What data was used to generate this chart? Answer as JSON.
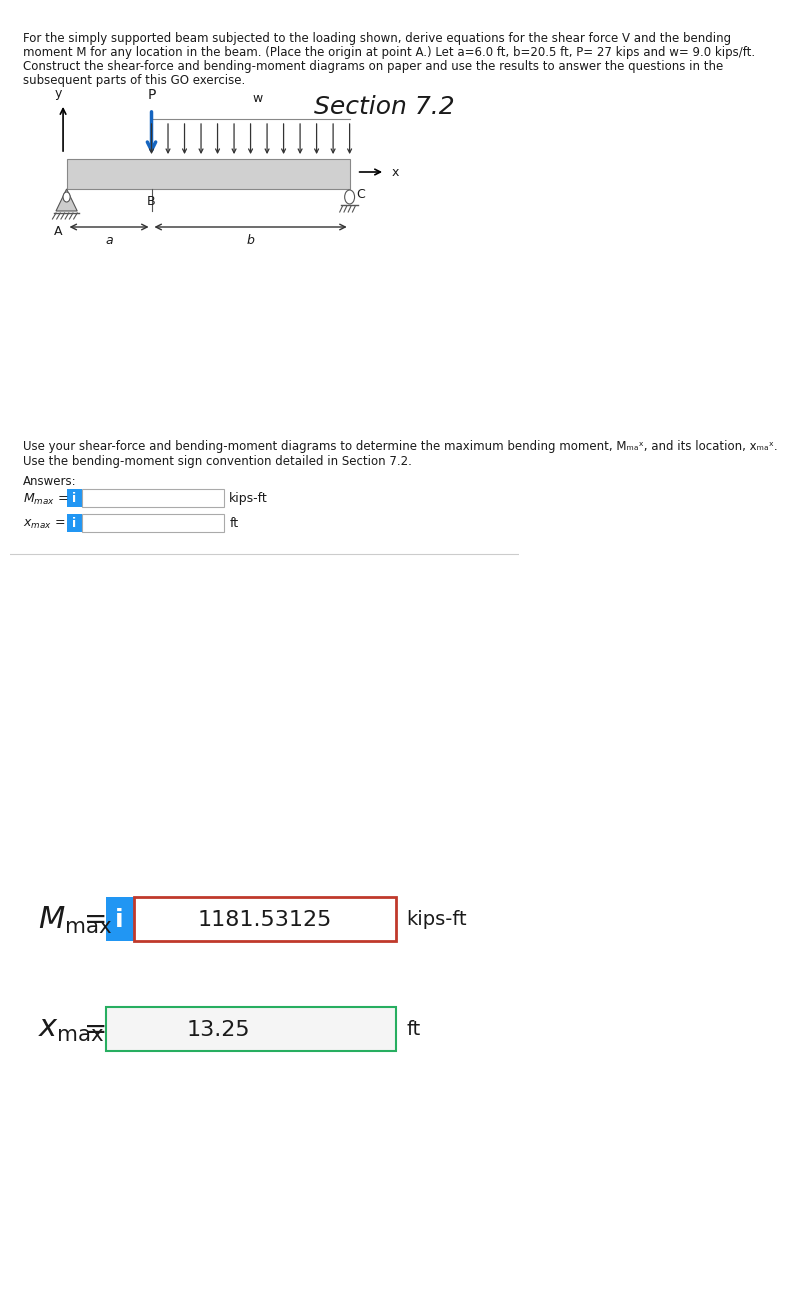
{
  "bg_color": "#ffffff",
  "problem_text_line1": "For the simply supported beam subjected to the loading shown, derive equations for the shear force V and the bending",
  "problem_text_line2": "moment M for any location in the beam. (Place the origin at point A.) Let a=6.0 ft, b=20.5 ft, P= 27 kips and w= 9.0 kips/ft.",
  "problem_text_line3": "Construct the shear-force and bending-moment diagrams on paper and use the results to answer the questions in the",
  "problem_text_line4": "subsequent parts of this GO exercise.",
  "section_label": "Section 7.2",
  "instruction_line1": "Use your shear-force and bending-moment diagrams to determine the maximum bending moment, Mₘₐˣ, and its location, xₘₐˣ.",
  "instruction_line2": "Use the bending-moment sign convention detailed in Section 7.2.",
  "answers_label": "Answers:",
  "mmax_label_small": "Mₘₐˣ =",
  "xmax_label_small": "xₘₐˣ =",
  "mmax_label_large": "Mₘₐˣ =",
  "xmax_label_large": "xₘₐˣ =",
  "mmax_value": "1181.53125",
  "xmax_value": "13.25",
  "mmax_unit": "kips-ft",
  "xmax_unit": "ft",
  "info_btn_color": "#2196F3",
  "info_btn_text": "i",
  "mmax_box_border": "#c0392b",
  "xmax_box_border": "#27ae60",
  "small_box_color": "#f0f0f0",
  "divider_color": "#cccccc"
}
